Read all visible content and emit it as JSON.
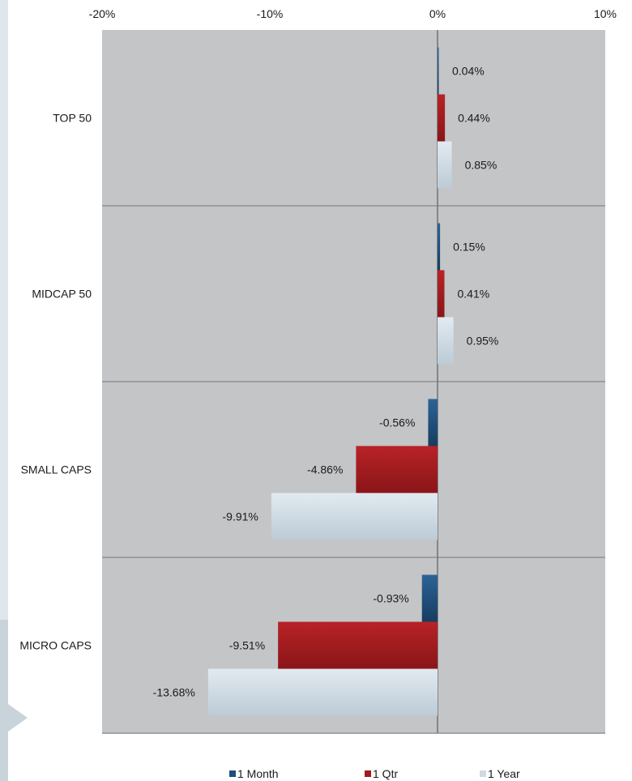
{
  "chart_data": {
    "type": "bar",
    "orientation": "horizontal",
    "categories": [
      "TOP 50",
      "MIDCAP 50",
      "SMALL CAPS",
      "MICRO CAPS"
    ],
    "series": [
      {
        "name": "1 Month",
        "values": [
          0.04,
          0.15,
          -0.56,
          -0.93
        ],
        "labels": [
          "0.04%",
          "0.15%",
          "-0.56%",
          "-0.93%"
        ]
      },
      {
        "name": "1 Qtr",
        "values": [
          0.44,
          0.41,
          -4.86,
          -9.51
        ],
        "labels": [
          "0.44%",
          "0.41%",
          "-4.86%",
          "-9.51%"
        ]
      },
      {
        "name": "1 Year",
        "values": [
          0.85,
          0.95,
          -9.91,
          -13.68
        ],
        "labels": [
          "0.85%",
          "0.95%",
          "-9.91%",
          "-13.68%"
        ]
      }
    ],
    "xlim": [
      -20,
      10
    ],
    "xticks": [
      "-20%",
      "-10%",
      "0%",
      "10%"
    ],
    "xaxis_position": "top",
    "grid": "horizontal separators",
    "legend": "bottom",
    "colors": {
      "plot_background": "#c3c5c7",
      "1 Month": "#1f4e79",
      "1 Qtr": "#a11c1f",
      "1 Year": "#cfdae2",
      "gridline": "#8f9295",
      "zero_line": "#6f7275"
    }
  }
}
